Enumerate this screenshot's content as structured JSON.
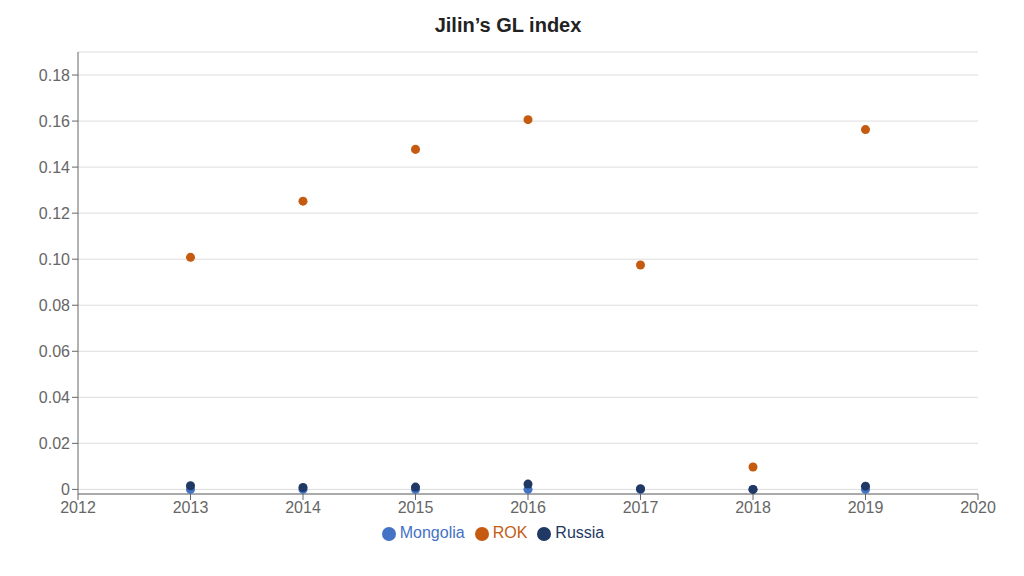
{
  "chart_data": {
    "type": "scatter",
    "title": "Jilin’s GL index",
    "x": [
      2013,
      2014,
      2015,
      2016,
      2017,
      2018,
      2019
    ],
    "series": [
      {
        "name": "Mongolia",
        "color": "#4472C4",
        "values": [
          0.0,
          0.0,
          0.0,
          0.0,
          0.0,
          0.0,
          0.0
        ]
      },
      {
        "name": "Russia",
        "color": "#1F3864",
        "values": [
          0.0016,
          0.0008,
          0.001,
          0.0023,
          0.0003,
          0.0,
          0.0014
        ]
      },
      {
        "name": "ROK",
        "color": "#C55A11",
        "values": [
          0.1008,
          0.1252,
          0.1477,
          0.1606,
          0.0975,
          0.0097,
          0.1563
        ]
      }
    ],
    "xlim": [
      2012,
      2020
    ],
    "xticks": [
      2012,
      2013,
      2014,
      2015,
      2016,
      2017,
      2018,
      2019,
      2020
    ],
    "ylim": [
      -0.002,
      0.19
    ],
    "yticks": [
      0,
      0.02,
      0.04,
      0.06,
      0.08,
      {
        "value": 0.1,
        "label": "0.10"
      },
      0.12,
      0.14,
      0.16,
      0.18
    ],
    "grid": true,
    "legend": "bottom"
  }
}
